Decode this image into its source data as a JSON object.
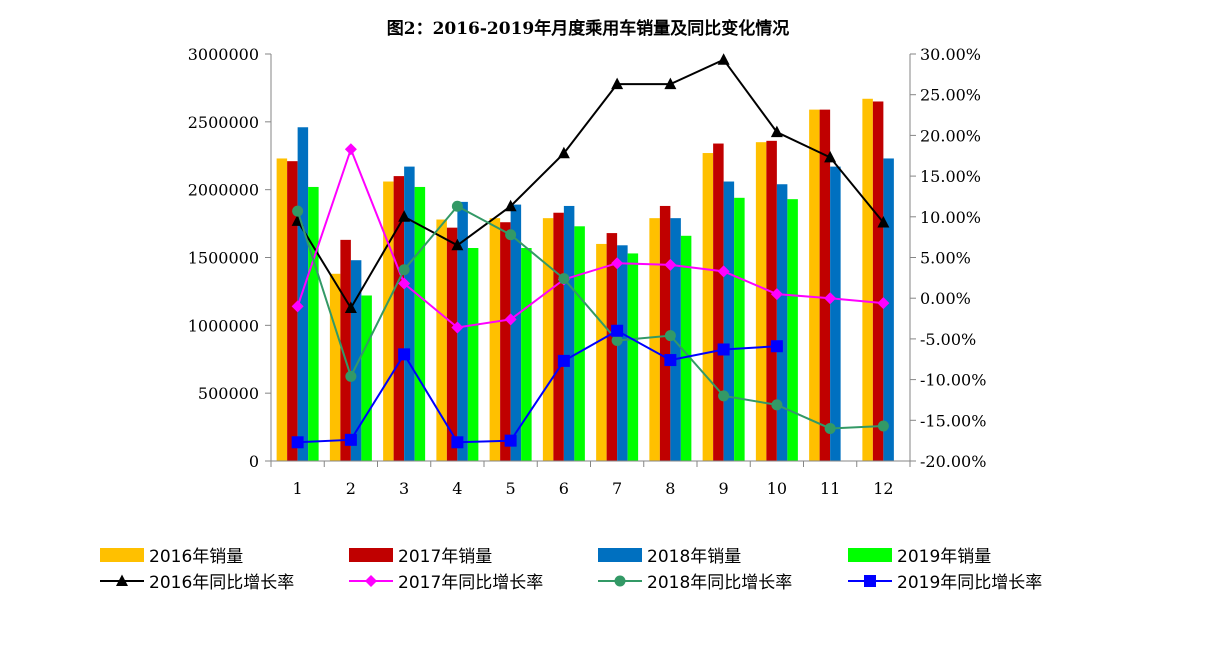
{
  "chart_data": {
    "type": "bar",
    "title": "图2：2016-2019年月度乘用车销量及同比变化情况",
    "categories": [
      "1",
      "2",
      "3",
      "4",
      "5",
      "6",
      "7",
      "8",
      "9",
      "10",
      "11",
      "12"
    ],
    "left_axis": {
      "ylim": [
        0,
        3000000
      ],
      "ticks": [
        "0",
        "500000",
        "1000000",
        "1500000",
        "2000000",
        "2500000",
        "3000000"
      ]
    },
    "right_axis": {
      "ylim": [
        -20,
        30
      ],
      "ticks": [
        "-20.00%",
        "-15.00%",
        "-10.00%",
        "-5.00%",
        "0.00%",
        "5.00%",
        "10.00%",
        "15.00%",
        "20.00%",
        "25.00%",
        "30.00%"
      ]
    },
    "bar_series": [
      {
        "name": "2016年销量",
        "color": "#FFC000",
        "values": [
          2230000,
          1380000,
          2060000,
          1780000,
          1790000,
          1790000,
          1600000,
          1790000,
          2270000,
          2350000,
          2590000,
          2670000
        ]
      },
      {
        "name": "2017年销量",
        "color": "#C00000",
        "values": [
          2210000,
          1630000,
          2100000,
          1720000,
          1760000,
          1830000,
          1680000,
          1880000,
          2340000,
          2360000,
          2590000,
          2650000
        ]
      },
      {
        "name": "2018年销量",
        "color": "#0070C0",
        "values": [
          2460000,
          1480000,
          2170000,
          1910000,
          1890000,
          1880000,
          1590000,
          1790000,
          2060000,
          2040000,
          2170000,
          2230000
        ]
      },
      {
        "name": "2019年销量",
        "color": "#00FF00",
        "values": [
          2020000,
          1220000,
          2020000,
          1570000,
          1570000,
          1730000,
          1530000,
          1660000,
          1940000,
          1930000,
          null,
          null
        ]
      }
    ],
    "line_series": [
      {
        "name": "2016年同比增长率",
        "color": "#000000",
        "marker": "triangle",
        "values": [
          9.5,
          -1.2,
          10.0,
          6.5,
          11.3,
          17.8,
          26.3,
          26.3,
          29.3,
          20.4,
          17.3,
          9.3
        ]
      },
      {
        "name": "2017年同比增长率",
        "color": "#FF00FF",
        "marker": "diamond",
        "values": [
          -1.0,
          18.3,
          1.8,
          -3.6,
          -2.6,
          2.3,
          4.3,
          4.1,
          3.3,
          0.5,
          0.0,
          -0.6
        ]
      },
      {
        "name": "2018年同比增长率",
        "color": "#339966",
        "marker": "circle",
        "values": [
          10.7,
          -9.6,
          3.5,
          11.3,
          7.8,
          2.4,
          -5.2,
          -4.6,
          -12.0,
          -13.1,
          -16.0,
          -15.7
        ]
      },
      {
        "name": "2019年同比增长率",
        "color": "#0000FF",
        "marker": "square",
        "values": [
          -17.7,
          -17.4,
          -6.9,
          -17.7,
          -17.5,
          -7.7,
          -4.0,
          -7.6,
          -6.3,
          -5.9,
          null,
          null
        ]
      }
    ],
    "legend_position": "bottom",
    "grid": false
  }
}
